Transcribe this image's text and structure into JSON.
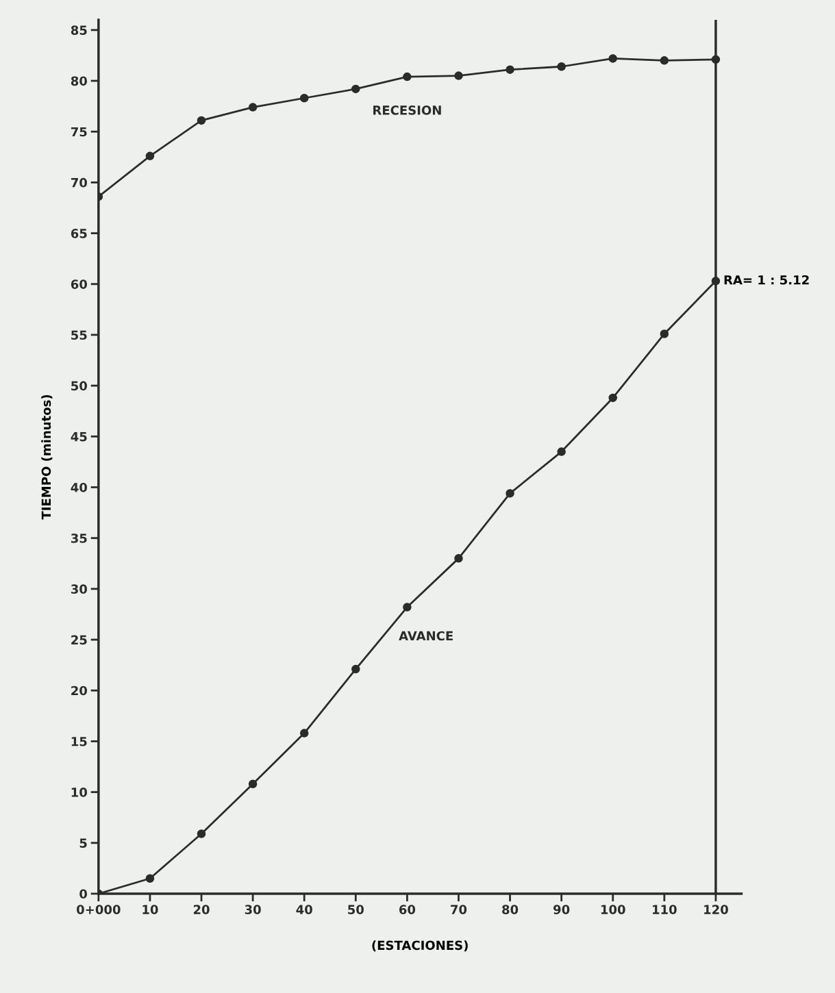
{
  "chart_data": {
    "type": "line",
    "xlabel": "(ESTACIONES)",
    "ylabel": "TIEMPO (minutos)",
    "x": [
      0,
      10,
      20,
      30,
      40,
      50,
      60,
      70,
      80,
      90,
      100,
      110,
      120
    ],
    "series": [
      {
        "name": "RECESION",
        "color": "#2b2b2b",
        "values": [
          68.6,
          72.6,
          76.1,
          77.4,
          78.3,
          79.2,
          80.4,
          80.5,
          81.1,
          81.4,
          82.2,
          82.0,
          82.1
        ]
      },
      {
        "name": "AVANCE",
        "color": "#2b2b2b",
        "values": [
          0,
          1.5,
          5.9,
          10.8,
          15.8,
          22.1,
          28.2,
          33.0,
          39.4,
          43.5,
          48.8,
          55.1,
          60.3
        ]
      }
    ],
    "xlim": [
      0,
      125
    ],
    "ylim": [
      0,
      86
    ],
    "xticks": [
      {
        "value": 0,
        "label": "0+000"
      },
      10,
      20,
      30,
      40,
      50,
      60,
      70,
      80,
      90,
      100,
      110,
      120
    ],
    "yticks": [
      0,
      5,
      10,
      15,
      20,
      25,
      30,
      35,
      40,
      45,
      50,
      55,
      60,
      65,
      70,
      75,
      80,
      85
    ],
    "ref_lines": [
      {
        "axis": "x",
        "value": 120,
        "color": "#2b2b2b"
      }
    ],
    "annotations": [
      {
        "text": "RA= 1 : 5.12",
        "x": 120,
        "y": 60.3
      }
    ],
    "marker": "circle",
    "line_style": "solid",
    "grid": false,
    "legend": false
  }
}
